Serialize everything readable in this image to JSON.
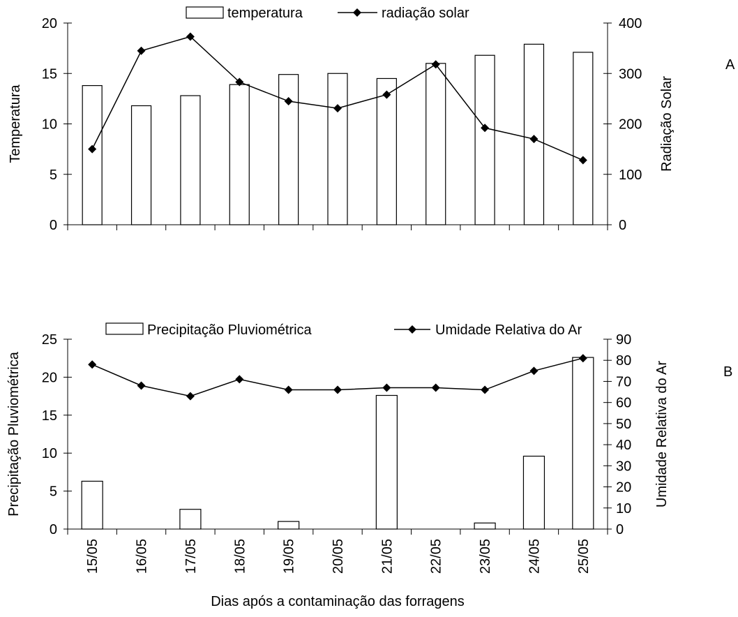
{
  "chart_data": [
    {
      "panel_label": "A",
      "type": "bar+line",
      "categories": [
        "15/05",
        "16/05",
        "17/05",
        "18/05",
        "19/05",
        "20/05",
        "21/05",
        "22/05",
        "23/05",
        "24/05",
        "25/05"
      ],
      "legend": [
        "temperatura",
        "radiação solar"
      ],
      "y_left": {
        "label": "Temperatura",
        "min": 0,
        "max": 20,
        "ticks": [
          0,
          5,
          10,
          15,
          20
        ]
      },
      "y_right": {
        "label": "Radiação Solar",
        "min": 0,
        "max": 400,
        "ticks": [
          0,
          100,
          200,
          300,
          400
        ]
      },
      "series": [
        {
          "name": "temperatura",
          "kind": "bar",
          "axis": "left",
          "values": [
            13.8,
            11.8,
            12.8,
            13.9,
            14.9,
            15.0,
            14.5,
            16.0,
            16.8,
            17.9,
            17.1
          ]
        },
        {
          "name": "radiação solar",
          "kind": "line",
          "axis": "right",
          "values": [
            150,
            345,
            373,
            283,
            245,
            231,
            258,
            318,
            192,
            170,
            128
          ]
        }
      ]
    },
    {
      "panel_label": "B",
      "type": "bar+line",
      "categories": [
        "15/05",
        "16/05",
        "17/05",
        "18/05",
        "19/05",
        "20/05",
        "21/05",
        "22/05",
        "23/05",
        "24/05",
        "25/05"
      ],
      "legend": [
        "Precipitação Pluviométrica",
        "Umidade Relativa do Ar"
      ],
      "y_left": {
        "label": "Precipitação Pluviométrica",
        "min": 0,
        "max": 25,
        "ticks": [
          0,
          5,
          10,
          15,
          20,
          25
        ]
      },
      "y_right": {
        "label": "Umidade Relativa do Ar",
        "min": 0,
        "max": 90,
        "ticks": [
          0,
          10,
          20,
          30,
          40,
          50,
          60,
          70,
          80,
          90
        ]
      },
      "xlabel": "Dias após a contaminação das forragens",
      "series": [
        {
          "name": "Precipitação Pluviométrica",
          "kind": "bar",
          "axis": "left",
          "values": [
            6.3,
            0,
            2.6,
            0,
            1.0,
            0,
            17.6,
            0,
            0.8,
            9.6,
            22.6
          ]
        },
        {
          "name": "Umidade Relativa do Ar",
          "kind": "line",
          "axis": "right",
          "values": [
            78,
            68,
            63,
            71,
            66,
            66,
            67,
            67,
            66,
            75,
            81
          ]
        }
      ]
    }
  ]
}
